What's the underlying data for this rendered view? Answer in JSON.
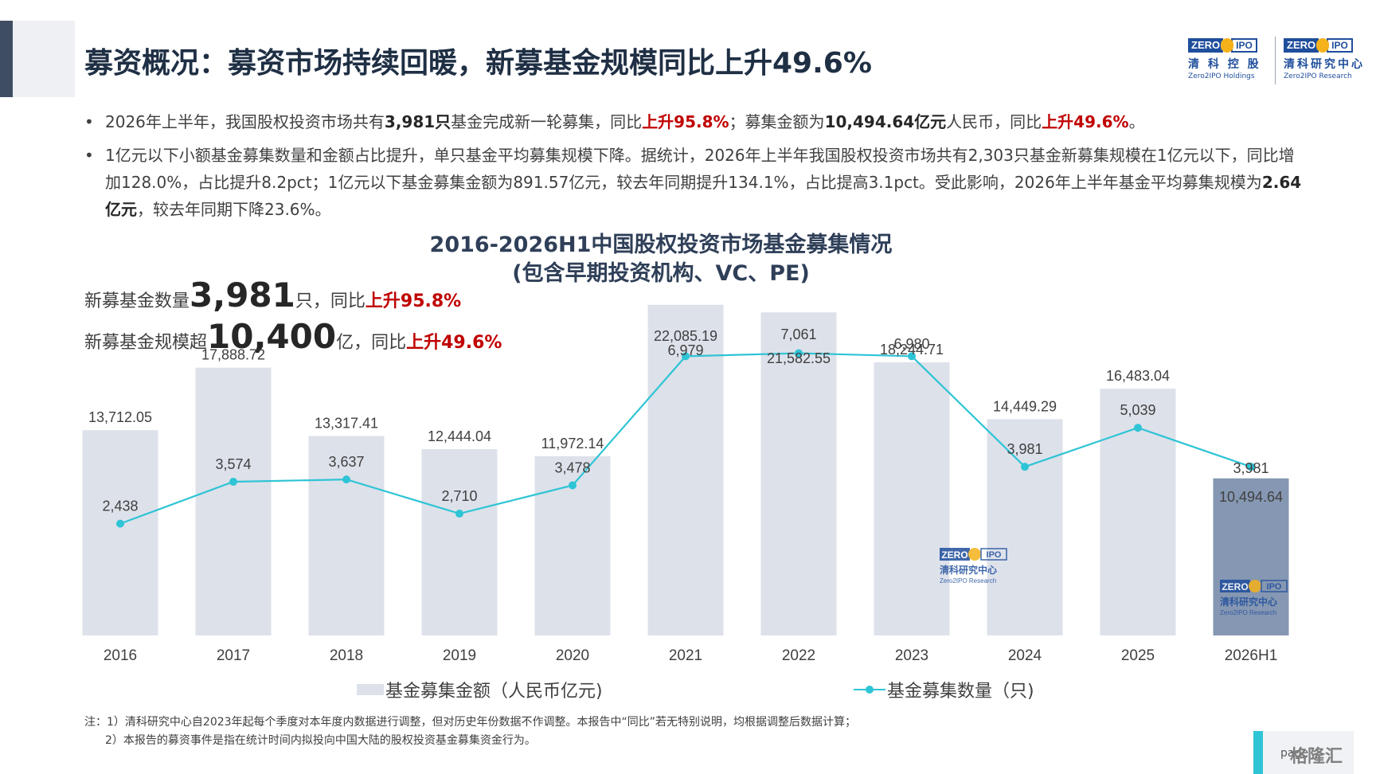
{
  "header": {
    "title": "募资概况：募资市场持续回暖，新募基金规模同比上升49.6%"
  },
  "logos": [
    {
      "badge_left": "ZERO",
      "badge_right": "IPO",
      "cn": "清 科 控 股",
      "en": "Zero2IPO Holdings"
    },
    {
      "badge_left": "ZERO",
      "badge_right": "IPO",
      "cn": "清科研究中心",
      "en": "Zero2IPO Research"
    }
  ],
  "bullets": {
    "b1": {
      "t1": "2026年上半年，我国股权投资市场共有",
      "v1": "3,981只",
      "t2": "基金完成新一轮募集，同比",
      "r1": "上升95.8%",
      "t3": "；募集金额为",
      "v2": "10,494.64亿元",
      "t4": "人民币，同比",
      "r2": "上升49.6%",
      "t5": "。"
    },
    "b2": {
      "t1": "1亿元以下小额基金募集数量和金额占比提升，单只基金平均募集规模下降。据统计，2026年上半年我国股权投资市场共有2,303只基金新募集规模在1亿元以下，同比增加128.0%，占比提升8.2pct；1亿元以下基金募集金额为891.57亿元，较去年同期提升134.1%，占比提高3.1pct。受此影响，2026年上半年基金平均募集规模为",
      "v1": "2.64亿元",
      "t2": "，较去年同期下降23.6%。"
    }
  },
  "highlights": {
    "count": {
      "prefix": "新募基金数量",
      "value": "3,981",
      "suffix": "只，同比",
      "change": "上升95.8%"
    },
    "scale": {
      "prefix": "新募基金规模超",
      "value": "10,400",
      "suffix": "亿，同比",
      "change": "上升49.6%"
    }
  },
  "chart_data": {
    "type": "bar",
    "title": "2016-2026H1中国股权投资市场基金募集情况",
    "subtitle": "(包含早期投资机构、VC、PE)",
    "categories": [
      "2016",
      "2017",
      "2018",
      "2019",
      "2020",
      "2021",
      "2022",
      "2023",
      "2024",
      "2025",
      "2026H1"
    ],
    "series": [
      {
        "name": "基金募集金额（人民币亿元)",
        "type": "bar",
        "values": [
          13712.05,
          17888.72,
          13317.41,
          12444.04,
          11972.14,
          22085.19,
          21582.55,
          18244.71,
          14449.29,
          16483.04,
          10494.64
        ],
        "labels": [
          "13,712.05",
          "17,888.72",
          "13,317.41",
          "12,444.04",
          "11,972.14",
          "22,085.19",
          "21,582.55",
          "18,244.71",
          "14,449.29",
          "16,483.04",
          "10,494.64"
        ],
        "color": "#dde1ea",
        "highlight_color": "#8597b2"
      },
      {
        "name": "基金募集数量（只)",
        "type": "line",
        "values": [
          2438,
          3574,
          3637,
          2710,
          3478,
          6979,
          7061,
          6980,
          3981,
          5039,
          3981
        ],
        "labels": [
          "2,438",
          "3,574",
          "3,637",
          "2,710",
          "3,478",
          "6,979",
          "7,061",
          "6,980",
          "3,981",
          "5,039",
          "3,981"
        ],
        "color": "#2ec4d6"
      }
    ],
    "legend_position": "bottom",
    "grid": false
  },
  "watermarks": [
    {
      "badge_left": "ZERO",
      "badge_right": "IPO",
      "cn": "清科研究中心",
      "en": "Zero2IPO Research"
    },
    {
      "badge_left": "ZERO",
      "badge_right": "IPO",
      "cn": "清科研究中心",
      "en": "Zero2IPO Research"
    }
  ],
  "notes": {
    "n1": "注：1）清科研究中心自2023年起每个季度对本年度内数据进行调整，但对历史年份数据不作调整。本报告中“同比”若无特别说明，均根据调整后数据计算；",
    "n2": "2）本报告的募资事件是指在统计时间内拟投向中国大陆的股权投资基金募集资金行为。"
  },
  "footer": {
    "page_label": "page",
    "watermark": "格隆汇"
  }
}
